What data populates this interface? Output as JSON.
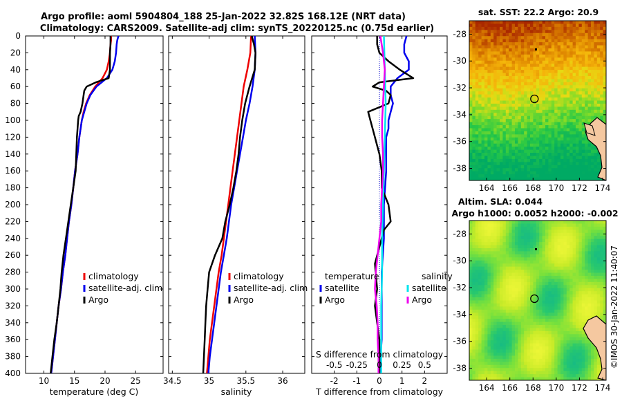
{
  "title": {
    "line1": "Argo profile: aoml 5904804_188 25-Jan-2022 32.82S 168.12E (NRT data)",
    "line2": "Climatology: CARS2009. Satellite-adj clim: synTS_20220125.nc (0.75d earlier)"
  },
  "colors": {
    "climatology": "#ee0000",
    "satellite": "#0000ee",
    "argo": "#000000",
    "satellite_sal": "#00e5ee",
    "argo_sal": "#ee00ee",
    "zero_line": "#0000cc"
  },
  "chart_data": [
    {
      "type": "line",
      "name": "temperature-profile",
      "xlabel": "temperature (deg C)",
      "ylabel": "",
      "xlim": [
        7,
        29.5
      ],
      "ylim": [
        400,
        0
      ],
      "x_ticks": [
        "10",
        "15",
        "20",
        "25"
      ],
      "x_tick_values": [
        10,
        15,
        20,
        25
      ],
      "y_ticks": [
        "0",
        "20",
        "40",
        "60",
        "80",
        "100",
        "120",
        "140",
        "160",
        "180",
        "200",
        "220",
        "240",
        "260",
        "280",
        "300",
        "320",
        "340",
        "360",
        "380",
        "400"
      ],
      "legend": [
        "climatology",
        "satellite-adj. clim",
        "Argo"
      ],
      "series": [
        {
          "name": "climatology",
          "depth": [
            0,
            5,
            10,
            20,
            30,
            40,
            50,
            60,
            70,
            80,
            90,
            100,
            120,
            140,
            160,
            180,
            200,
            220,
            240,
            260,
            280,
            300,
            320,
            340,
            360,
            380,
            400
          ],
          "values": [
            21.0,
            21.0,
            20.9,
            20.8,
            20.6,
            20.3,
            19.6,
            18.4,
            17.5,
            16.9,
            16.5,
            16.2,
            15.8,
            15.5,
            15.1,
            14.8,
            14.5,
            14.1,
            13.8,
            13.5,
            13.1,
            12.8,
            12.4,
            12.1,
            11.8,
            11.5,
            11.2
          ]
        },
        {
          "name": "satellite-adj. clim",
          "depth": [
            0,
            5,
            10,
            20,
            30,
            40,
            50,
            60,
            70,
            80,
            90,
            100,
            120,
            140,
            160,
            180,
            200,
            220,
            240,
            260,
            280,
            300,
            320,
            340,
            360,
            380,
            400
          ],
          "values": [
            22.2,
            22.0,
            21.9,
            21.8,
            21.6,
            21.2,
            20.3,
            18.6,
            17.6,
            17.0,
            16.6,
            16.2,
            15.8,
            15.5,
            15.1,
            14.8,
            14.5,
            14.1,
            13.8,
            13.5,
            13.1,
            12.8,
            12.4,
            12.1,
            11.8,
            11.5,
            11.2
          ]
        },
        {
          "name": "Argo",
          "depth": [
            0,
            10,
            20,
            30,
            40,
            50,
            55,
            60,
            65,
            70,
            80,
            90,
            95,
            100,
            110,
            120,
            140,
            160,
            180,
            200,
            220,
            240,
            260,
            280,
            300,
            320,
            340,
            360,
            380,
            400
          ],
          "values": [
            20.9,
            20.9,
            20.8,
            20.8,
            20.8,
            20.6,
            18.5,
            17.0,
            16.6,
            16.5,
            16.3,
            16.0,
            15.7,
            15.6,
            15.5,
            15.4,
            15.3,
            15.2,
            14.8,
            14.4,
            14.0,
            13.6,
            13.2,
            12.9,
            12.7,
            12.4,
            12.1,
            11.7,
            11.4,
            11.1
          ]
        }
      ]
    },
    {
      "type": "line",
      "name": "salinity-profile",
      "xlabel": "salinity",
      "xlim": [
        34.45,
        36.3
      ],
      "ylim": [
        400,
        0
      ],
      "x_ticks": [
        "34.5",
        "35",
        "35.5",
        "36"
      ],
      "x_tick_values": [
        34.5,
        35,
        35.5,
        36
      ],
      "legend": [
        "climatology",
        "satellite-adj. clim",
        "Argo"
      ],
      "series": [
        {
          "name": "climatology",
          "depth": [
            0,
            20,
            40,
            60,
            80,
            100,
            120,
            140,
            160,
            180,
            200,
            220,
            240,
            260,
            280,
            300,
            320,
            340,
            360,
            380,
            400
          ],
          "values": [
            35.57,
            35.56,
            35.52,
            35.47,
            35.44,
            35.41,
            35.38,
            35.35,
            35.32,
            35.29,
            35.26,
            35.23,
            35.2,
            35.17,
            35.13,
            35.1,
            35.07,
            35.04,
            35.01,
            34.99,
            34.97
          ]
        },
        {
          "name": "satellite-adj. clim",
          "depth": [
            0,
            20,
            40,
            60,
            80,
            100,
            120,
            140,
            160,
            180,
            200,
            220,
            240,
            260,
            280,
            300,
            320,
            340,
            360,
            380,
            400
          ],
          "values": [
            35.62,
            35.63,
            35.62,
            35.59,
            35.55,
            35.5,
            35.46,
            35.42,
            35.38,
            35.34,
            35.3,
            35.27,
            35.24,
            35.2,
            35.16,
            35.13,
            35.1,
            35.07,
            35.04,
            35.01,
            34.99
          ]
        },
        {
          "name": "Argo",
          "depth": [
            0,
            10,
            20,
            40,
            60,
            80,
            100,
            120,
            140,
            160,
            180,
            200,
            220,
            240,
            260,
            280,
            300,
            320,
            340,
            360,
            380,
            400
          ],
          "values": [
            35.58,
            35.61,
            35.63,
            35.62,
            35.55,
            35.49,
            35.45,
            35.42,
            35.4,
            35.37,
            35.33,
            35.28,
            35.22,
            35.18,
            35.08,
            35.0,
            34.98,
            34.96,
            34.95,
            34.94,
            34.93,
            34.92
          ]
        }
      ]
    },
    {
      "type": "line",
      "name": "difference-profile",
      "xlabel": "T difference from climatology",
      "xlabel2": "S difference from climatology",
      "xlim": [
        -3,
        3
      ],
      "ylim": [
        400,
        0
      ],
      "x_ticks": [
        "-2",
        "-1",
        "0",
        "1",
        "2"
      ],
      "x_tick_values": [
        -2,
        -1,
        0,
        1,
        2
      ],
      "s_ticks": [
        "-0.5",
        "-0.25",
        "0",
        "0.25",
        "0.5"
      ],
      "s_tick_values": [
        -0.5,
        -0.25,
        0,
        0.25,
        0.5
      ],
      "legend_left": {
        "title": "temperature",
        "items": [
          "satellite",
          "Argo"
        ]
      },
      "legend_right": {
        "title": "salinity",
        "items": [
          "satellite",
          "Argo"
        ]
      },
      "series": [
        {
          "name": "temperature satellite",
          "depth": [
            0,
            10,
            20,
            30,
            40,
            50,
            60,
            70,
            80,
            90,
            100,
            110,
            120,
            140,
            160,
            200,
            240,
            280,
            320,
            360,
            400
          ],
          "values": [
            1.2,
            1.1,
            1.1,
            1.3,
            1.3,
            0.8,
            0.5,
            0.5,
            0.6,
            0.5,
            0.4,
            0.4,
            0.3,
            0.3,
            0.3,
            0.2,
            0.2,
            0.1,
            0.1,
            0.1,
            0.0
          ]
        },
        {
          "name": "temperature Argo",
          "depth": [
            0,
            10,
            20,
            30,
            40,
            50,
            55,
            60,
            65,
            70,
            80,
            90,
            100,
            110,
            120,
            130,
            140,
            160,
            180,
            200,
            220,
            230,
            250,
            270,
            300,
            320,
            340,
            360,
            380,
            400
          ],
          "values": [
            -0.1,
            -0.1,
            0.0,
            0.4,
            0.9,
            1.5,
            0.0,
            -0.3,
            0.3,
            0.5,
            0.4,
            -0.5,
            -0.4,
            -0.3,
            -0.2,
            -0.1,
            0.0,
            0.1,
            0.1,
            0.4,
            0.5,
            0.2,
            0.0,
            -0.2,
            -0.1,
            -0.2,
            -0.1,
            0.0,
            0.0,
            0.0
          ]
        },
        {
          "name": "salinity satellite",
          "depth": [
            0,
            40,
            80,
            120,
            160,
            200,
            240,
            280,
            320,
            360,
            400
          ],
          "values": [
            0.05,
            0.06,
            0.07,
            0.06,
            0.05,
            0.04,
            0.03,
            0.03,
            0.02,
            0.02,
            0.02
          ]
        },
        {
          "name": "salinity Argo",
          "depth": [
            0,
            20,
            40,
            60,
            80,
            100,
            120,
            140,
            160,
            180,
            200,
            220,
            240,
            260,
            280,
            300,
            320,
            340,
            360,
            380,
            400
          ],
          "values": [
            0.01,
            0.04,
            0.06,
            0.05,
            0.04,
            0.03,
            0.03,
            0.04,
            0.04,
            0.03,
            0.02,
            0.02,
            0.0,
            -0.02,
            -0.04,
            -0.05,
            -0.03,
            -0.02,
            -0.02,
            -0.01,
            -0.01
          ]
        }
      ]
    }
  ],
  "maps": {
    "sst": {
      "title": "sat. SST: 22.2 Argo: 20.9",
      "x_ticks": [
        "164",
        "166",
        "168",
        "170",
        "172",
        "174"
      ],
      "y_ticks": [
        "-28",
        "-30",
        "-32",
        "-34",
        "-36",
        "-38"
      ],
      "marker_lon": 168.12,
      "marker_lat": -32.82
    },
    "sla": {
      "title1": "Altim. SLA: 0.044",
      "title2": "Argo h1000: 0.0052 h2000: -0.002",
      "x_ticks": [
        "164",
        "166",
        "168",
        "170",
        "172",
        "174"
      ],
      "y_ticks": [
        "-28",
        "-30",
        "-32",
        "-34",
        "-36",
        "-38"
      ],
      "marker_lon": 168.12,
      "marker_lat": -32.82
    }
  },
  "footer": {
    "credit": "©IMOS 30-Jan-2022 11:40:07"
  }
}
